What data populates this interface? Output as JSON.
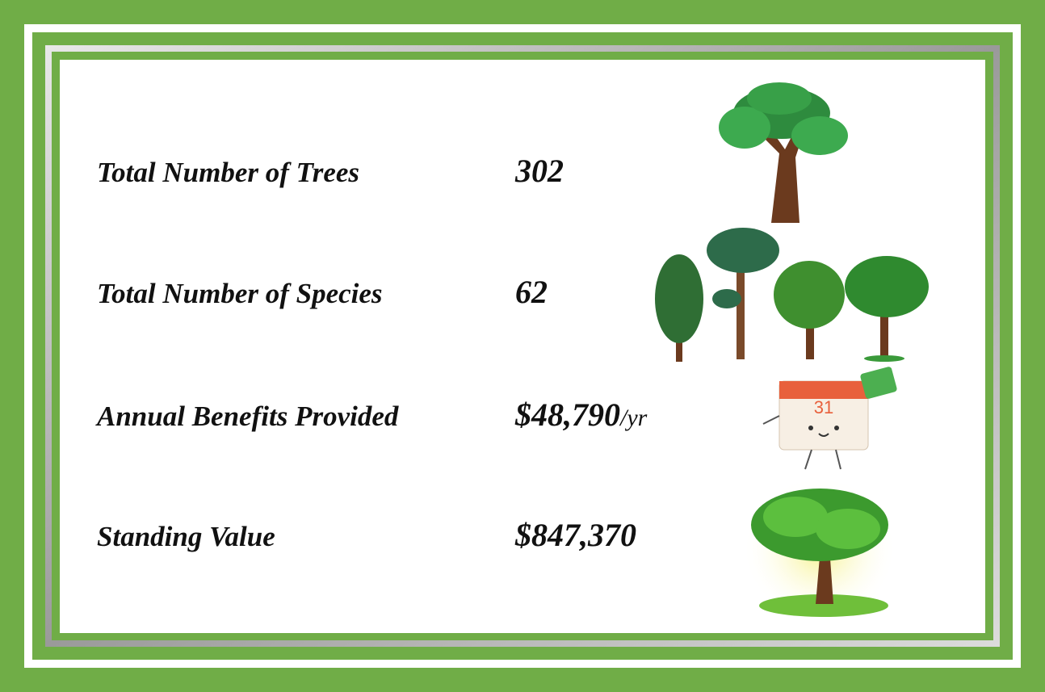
{
  "rows": [
    {
      "label": "Total Number of Trees",
      "value": "302"
    },
    {
      "label": "Total Number of Species",
      "value": "62"
    },
    {
      "label": "Annual Benefits Provided",
      "value": "$48,790",
      "suffix": "/yr"
    },
    {
      "label": "Standing Value",
      "value": "$847,370"
    }
  ]
}
